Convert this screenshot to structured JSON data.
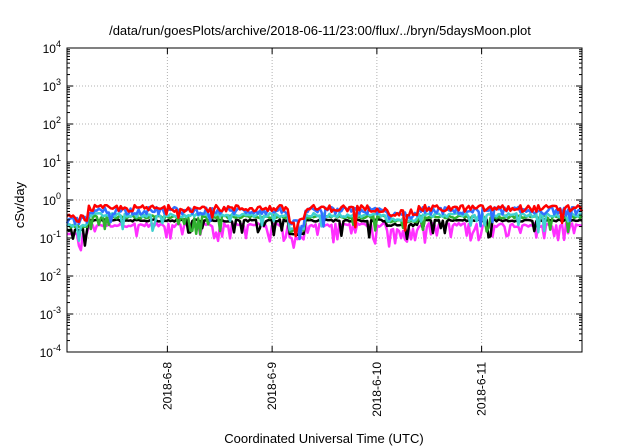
{
  "chart_data": {
    "type": "line",
    "title": "/data/run/goesPlots/archive/2018-06-11/23:00/flux/../bryn/5daysMoon.plot",
    "xlabel": "Coordinated Universal Time (UTC)",
    "ylabel": "cSv/day",
    "yscale": "log",
    "ylim": [
      0.0001,
      10000
    ],
    "y_ticks": [
      {
        "value": 0.0001,
        "base": "10",
        "exp": "-4"
      },
      {
        "value": 0.001,
        "base": "10",
        "exp": "-3"
      },
      {
        "value": 0.01,
        "base": "10",
        "exp": "-2"
      },
      {
        "value": 0.1,
        "base": "10",
        "exp": "-1"
      },
      {
        "value": 1,
        "base": "10",
        "exp": "0"
      },
      {
        "value": 10,
        "base": "10",
        "exp": "1"
      },
      {
        "value": 100,
        "base": "10",
        "exp": "2"
      },
      {
        "value": 1000,
        "base": "10",
        "exp": "3"
      },
      {
        "value": 10000,
        "base": "10",
        "exp": "4"
      }
    ],
    "xlim": [
      "2018-06-07T01:00",
      "2018-06-11T23:00"
    ],
    "x_ticks": [
      {
        "value": "2018-06-08T00:00",
        "label": "2018-6-8"
      },
      {
        "value": "2018-06-09T00:00",
        "label": "2018-6-9"
      },
      {
        "value": "2018-06-10T00:00",
        "label": "2018-6-10"
      },
      {
        "value": "2018-06-11T00:00",
        "label": "2018-6-11"
      }
    ],
    "grid": true,
    "series": [
      {
        "color": "#ff0000",
        "level": 0.6,
        "noise": 0.18,
        "dip": 0.02
      },
      {
        "color": "#3070ff",
        "level": 0.52,
        "noise": 0.2,
        "dip": 0.02
      },
      {
        "color": "#40d0d0",
        "level": 0.4,
        "noise": 0.1,
        "dip": 0.03
      },
      {
        "color": "#30b030",
        "level": 0.36,
        "noise": 0.08,
        "dip": 0.03
      },
      {
        "color": "#000000",
        "level": 0.29,
        "noise": 0.06,
        "dip": 0.03
      },
      {
        "color": "#ff30ff",
        "level": 0.22,
        "noise": 0.1,
        "dip": 0.1
      }
    ]
  }
}
